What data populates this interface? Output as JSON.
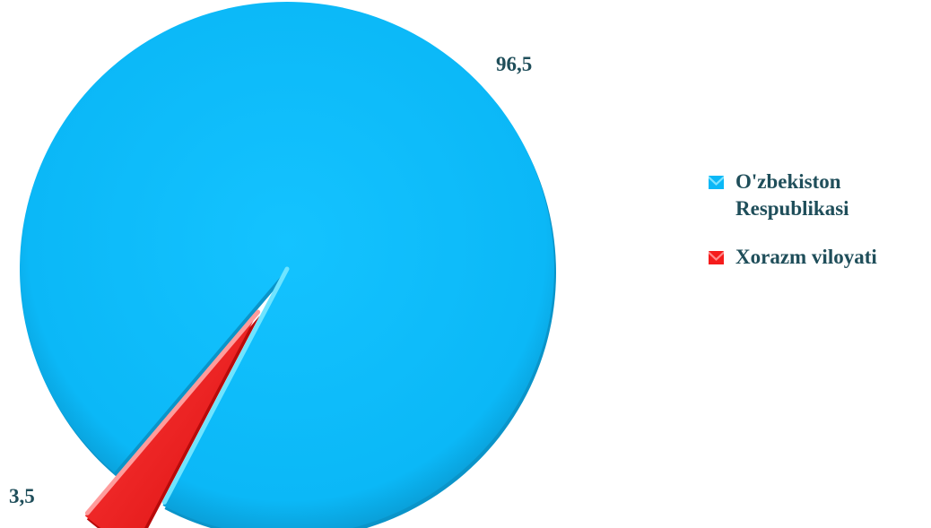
{
  "chart_data": {
    "type": "pie",
    "title": "",
    "series": [
      {
        "categories": [
          "O'zbekiston Respublikasi",
          "Xorazm viloyati"
        ],
        "values": [
          96.5,
          3.5
        ],
        "labels": [
          "96,5",
          "3,5"
        ]
      }
    ],
    "exploded": [
      "Xorazm viloyati"
    ],
    "legend": "right",
    "colors": [
      "#0bb8f7",
      "#f51c1c"
    ]
  }
}
